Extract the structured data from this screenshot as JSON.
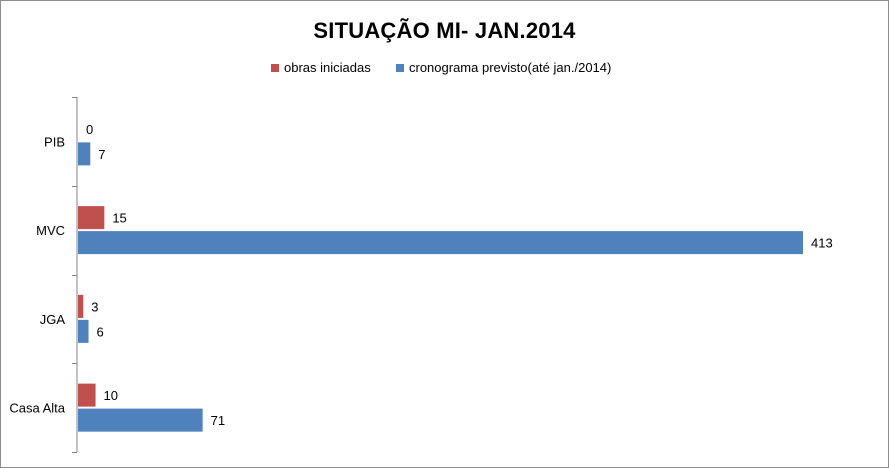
{
  "chart_data": {
    "type": "bar",
    "orientation": "horizontal",
    "title": "SITUAÇÃO MI- JAN.2014",
    "categories": [
      "PIB",
      "MVC",
      "JGA",
      "Casa Alta"
    ],
    "series": [
      {
        "name": "obras iniciadas",
        "color": "#c0504d",
        "values": [
          0,
          15,
          3,
          10
        ]
      },
      {
        "name": "cronograma previsto(até jan./2014)",
        "color": "#4f81bd",
        "values": [
          7,
          413,
          6,
          71
        ]
      }
    ],
    "xlim": [
      0,
      413
    ],
    "grid": false,
    "legend_position": "top",
    "data_labels": true
  }
}
